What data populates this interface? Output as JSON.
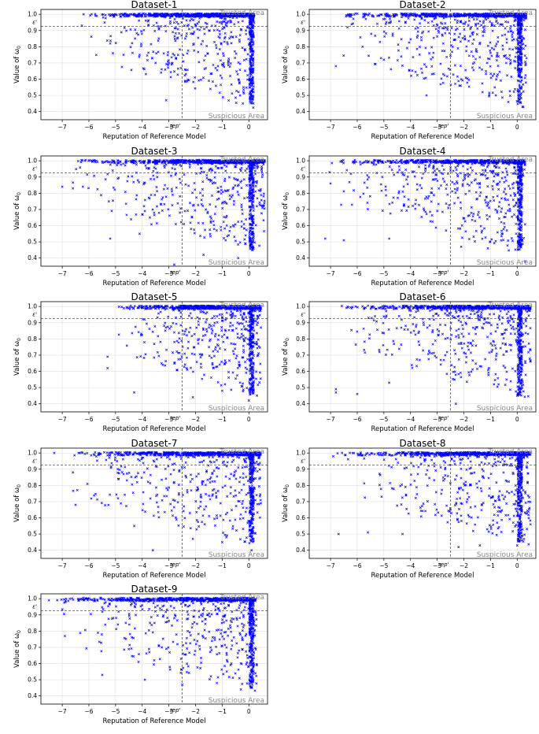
{
  "figure": {
    "xlabel": "Reputation of Reference Model",
    "ylabel_prefix": "Value of ",
    "ylabel_symbol": "ω",
    "ylabel_sub": "0",
    "trusted_label": "Trusted Area",
    "suspicious_label": "Suspicious Area",
    "rep_label": "rep'",
    "eps_label": "ε'",
    "colors": {
      "points": "#0000ff",
      "threshold": "#555555",
      "grid": "#dddddd",
      "area_text": "#888888"
    }
  },
  "chart_data": [
    {
      "type": "scatter",
      "title": "Dataset-1",
      "xlim": [
        -7.8,
        0.7
      ],
      "ylim": [
        0.35,
        1.03
      ],
      "xticks": [
        -7,
        -6,
        -5,
        -4,
        -3,
        -2,
        -1,
        0
      ],
      "yticks": [
        0.4,
        0.5,
        0.6,
        0.7,
        0.8,
        0.9,
        1.0
      ],
      "rep_threshold": -2.5,
      "eps_threshold": 0.925,
      "grid": true,
      "x_extent": [
        -6.3,
        0.2
      ],
      "sample_points": [
        [
          -6.2,
          1.0
        ],
        [
          -5.2,
          0.82
        ],
        [
          -5.1,
          0.76
        ],
        [
          -4.1,
          0.75
        ],
        [
          -3.5,
          0.7
        ],
        [
          -3.1,
          0.47
        ],
        [
          -2.4,
          0.66
        ],
        [
          -1.5,
          0.59
        ],
        [
          -0.7,
          0.62
        ],
        [
          -0.2,
          0.55
        ],
        [
          0.05,
          0.47
        ],
        [
          0.1,
          0.8
        ]
      ]
    },
    {
      "type": "scatter",
      "title": "Dataset-2",
      "xlim": [
        -7.8,
        0.7
      ],
      "ylim": [
        0.35,
        1.03
      ],
      "xticks": [
        -7,
        -6,
        -5,
        -4,
        -3,
        -2,
        -1,
        0
      ],
      "yticks": [
        0.4,
        0.5,
        0.6,
        0.7,
        0.8,
        0.9,
        1.0
      ],
      "rep_threshold": -2.5,
      "eps_threshold": 0.925,
      "grid": true,
      "x_extent": [
        -6.8,
        0.35
      ],
      "sample_points": [
        [
          -6.8,
          0.68
        ],
        [
          -5.8,
          0.8
        ],
        [
          -5.0,
          0.72
        ],
        [
          -3.4,
          0.5
        ],
        [
          -2.1,
          0.6
        ],
        [
          -1.3,
          0.52
        ],
        [
          -0.8,
          0.5
        ],
        [
          0.2,
          0.43
        ],
        [
          0.35,
          0.73
        ]
      ]
    },
    {
      "type": "scatter",
      "title": "Dataset-3",
      "xlim": [
        -7.8,
        0.7
      ],
      "ylim": [
        0.35,
        1.03
      ],
      "xticks": [
        -7,
        -6,
        -5,
        -4,
        -3,
        -2,
        -1,
        0
      ],
      "yticks": [
        0.4,
        0.5,
        0.6,
        0.7,
        0.8,
        0.9,
        1.0
      ],
      "rep_threshold": -2.5,
      "eps_threshold": 0.925,
      "grid": true,
      "x_extent": [
        -7.0,
        0.6
      ],
      "sample_points": [
        [
          -7.0,
          0.84
        ],
        [
          -6.6,
          0.83
        ],
        [
          -5.2,
          0.52
        ],
        [
          -4.1,
          0.55
        ],
        [
          -2.8,
          0.36
        ],
        [
          -1.7,
          0.42
        ],
        [
          -0.4,
          0.4
        ],
        [
          0.3,
          0.72
        ],
        [
          0.5,
          0.9
        ]
      ]
    },
    {
      "type": "scatter",
      "title": "Dataset-4",
      "xlim": [
        -7.8,
        0.7
      ],
      "ylim": [
        0.35,
        1.03
      ],
      "xticks": [
        -7,
        -6,
        -5,
        -4,
        -3,
        -2,
        -1,
        0
      ],
      "yticks": [
        0.4,
        0.5,
        0.6,
        0.7,
        0.8,
        0.9,
        1.0
      ],
      "rep_threshold": -2.5,
      "eps_threshold": 0.925,
      "grid": true,
      "x_extent": [
        -7.2,
        0.3
      ],
      "sample_points": [
        [
          -7.2,
          0.52
        ],
        [
          -7.0,
          0.86
        ],
        [
          -6.5,
          0.51
        ],
        [
          -4.8,
          0.52
        ],
        [
          -2.1,
          0.47
        ],
        [
          -1.1,
          0.46
        ],
        [
          0.3,
          0.38
        ]
      ]
    },
    {
      "type": "scatter",
      "title": "Dataset-5",
      "xlim": [
        -7.8,
        0.7
      ],
      "ylim": [
        0.35,
        1.03
      ],
      "xticks": [
        -7,
        -6,
        -5,
        -4,
        -3,
        -2,
        -1,
        0
      ],
      "yticks": [
        0.4,
        0.5,
        0.6,
        0.7,
        0.8,
        0.9,
        1.0
      ],
      "rep_threshold": -2.5,
      "eps_threshold": 0.925,
      "grid": true,
      "x_extent": [
        -5.3,
        0.45
      ],
      "sample_points": [
        [
          -5.3,
          0.62
        ],
        [
          -5.3,
          0.69
        ],
        [
          -4.3,
          0.47
        ],
        [
          -2.1,
          0.44
        ],
        [
          -1.0,
          0.48
        ],
        [
          0.0,
          0.42
        ],
        [
          0.45,
          0.87
        ]
      ]
    },
    {
      "type": "scatter",
      "title": "Dataset-6",
      "xlim": [
        -7.8,
        0.7
      ],
      "ylim": [
        0.35,
        1.03
      ],
      "xticks": [
        -7,
        -6,
        -5,
        -4,
        -3,
        -2,
        -1,
        0
      ],
      "yticks": [
        0.4,
        0.5,
        0.6,
        0.7,
        0.8,
        0.9,
        1.0
      ],
      "rep_threshold": -2.5,
      "eps_threshold": 0.925,
      "grid": true,
      "x_extent": [
        -6.8,
        0.5
      ],
      "sample_points": [
        [
          -6.8,
          0.47
        ],
        [
          -6.8,
          0.49
        ],
        [
          -6.0,
          0.46
        ],
        [
          -4.8,
          0.53
        ],
        [
          -2.3,
          0.4
        ],
        [
          -0.7,
          0.52
        ],
        [
          0.0,
          0.45
        ],
        [
          0.5,
          0.66
        ]
      ]
    },
    {
      "type": "scatter",
      "title": "Dataset-7",
      "xlim": [
        -7.8,
        0.7
      ],
      "ylim": [
        0.35,
        1.03
      ],
      "xticks": [
        -7,
        -6,
        -5,
        -4,
        -3,
        -2,
        -1,
        0
      ],
      "yticks": [
        0.4,
        0.5,
        0.6,
        0.7,
        0.8,
        0.9,
        1.0
      ],
      "rep_threshold": -2.5,
      "eps_threshold": 0.925,
      "grid": true,
      "x_extent": [
        -7.3,
        0.45
      ],
      "sample_points": [
        [
          -7.3,
          1.0
        ],
        [
          -6.6,
          0.88
        ],
        [
          -6.5,
          0.68
        ],
        [
          -4.3,
          0.55
        ],
        [
          -3.6,
          0.4
        ],
        [
          -2.1,
          0.47
        ],
        [
          -1.0,
          0.45
        ],
        [
          0.1,
          0.4
        ],
        [
          0.45,
          0.69
        ]
      ]
    },
    {
      "type": "scatter",
      "title": "Dataset-8",
      "xlim": [
        -7.8,
        0.7
      ],
      "ylim": [
        0.35,
        1.03
      ],
      "xticks": [
        -7,
        -6,
        -5,
        -4,
        -3,
        -2,
        -1,
        0
      ],
      "yticks": [
        0.4,
        0.5,
        0.6,
        0.7,
        0.8,
        0.9,
        1.0
      ],
      "rep_threshold": -2.5,
      "eps_threshold": 0.925,
      "grid": true,
      "x_extent": [
        -6.9,
        0.5
      ],
      "sample_points": [
        [
          -6.9,
          0.98
        ],
        [
          -6.7,
          0.5
        ],
        [
          -5.6,
          0.51
        ],
        [
          -4.3,
          0.5
        ],
        [
          -2.2,
          0.42
        ],
        [
          -1.4,
          0.43
        ],
        [
          0.0,
          0.43
        ],
        [
          0.5,
          0.56
        ]
      ]
    },
    {
      "type": "scatter",
      "title": "Dataset-9",
      "xlim": [
        -7.8,
        0.7
      ],
      "ylim": [
        0.35,
        1.03
      ],
      "xticks": [
        -7,
        -6,
        -5,
        -4,
        -3,
        -2,
        -1,
        0
      ],
      "yticks": [
        0.4,
        0.5,
        0.6,
        0.7,
        0.8,
        0.9,
        1.0
      ],
      "rep_threshold": -2.5,
      "eps_threshold": 0.925,
      "grid": true,
      "x_extent": [
        -7.5,
        0.3
      ],
      "sample_points": [
        [
          -7.5,
          0.99
        ],
        [
          -6.9,
          0.77
        ],
        [
          -5.5,
          0.53
        ],
        [
          -3.9,
          0.5
        ],
        [
          -2.5,
          0.47
        ],
        [
          -1.2,
          0.48
        ],
        [
          -0.3,
          0.44
        ],
        [
          0.3,
          0.59
        ]
      ]
    }
  ]
}
